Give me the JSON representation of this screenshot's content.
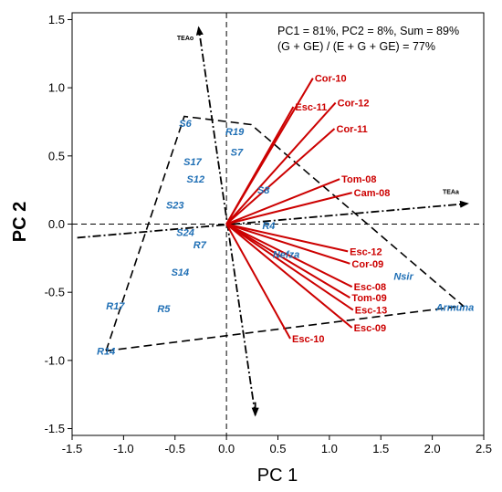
{
  "chart_data": {
    "type": "scatter",
    "xlabel": "PC 1",
    "ylabel": "PC 2",
    "xlim": [
      -1.5,
      2.5
    ],
    "ylim": [
      -1.55,
      1.55
    ],
    "x_ticks": [
      -1.5,
      -1.0,
      -0.5,
      0.0,
      0.5,
      1.0,
      1.5,
      2.0,
      2.5
    ],
    "y_ticks": [
      -1.5,
      -1.0,
      -0.5,
      0.0,
      0.5,
      1.0,
      1.5
    ],
    "x_tick_labels": [
      "-1.5",
      "-1.0",
      "-0.5",
      "0.0",
      "0.5",
      "1.0",
      "1.5",
      "2.0",
      "2.5"
    ],
    "y_tick_labels": [
      "-1.5",
      "-1.0",
      "-0.5",
      "0.0",
      "0.5",
      "1.0",
      "1.5"
    ],
    "annotations": [
      "PC1 =  81%, PC2 = 8%, Sum = 89%",
      "(G + GE) / (E + G + GE) = 77%"
    ],
    "genotypes": [
      {
        "name": "S6",
        "x": -0.4,
        "y": 0.74
      },
      {
        "name": "R19",
        "x": 0.08,
        "y": 0.68
      },
      {
        "name": "S7",
        "x": 0.1,
        "y": 0.53
      },
      {
        "name": "S17",
        "x": -0.33,
        "y": 0.46
      },
      {
        "name": "S12",
        "x": -0.3,
        "y": 0.33
      },
      {
        "name": "S8",
        "x": 0.36,
        "y": 0.25
      },
      {
        "name": "S23",
        "x": -0.5,
        "y": 0.14
      },
      {
        "name": "R4",
        "x": 0.41,
        "y": -0.01
      },
      {
        "name": "S24",
        "x": -0.4,
        "y": -0.06
      },
      {
        "name": "R7",
        "x": -0.26,
        "y": -0.15
      },
      {
        "name": "Nefza",
        "x": 0.58,
        "y": -0.22
      },
      {
        "name": "S14",
        "x": -0.45,
        "y": -0.35
      },
      {
        "name": "Nsir",
        "x": 1.72,
        "y": -0.38
      },
      {
        "name": "R17",
        "x": -1.08,
        "y": -0.6
      },
      {
        "name": "R5",
        "x": -0.61,
        "y": -0.62
      },
      {
        "name": "Armuna",
        "x": 2.22,
        "y": -0.61
      },
      {
        "name": "R14",
        "x": -1.17,
        "y": -0.93
      }
    ],
    "environments": [
      {
        "name": "Cor-10",
        "x": 0.84,
        "y": 1.07
      },
      {
        "name": "Esc-11",
        "x": 0.65,
        "y": 0.86
      },
      {
        "name": "Cor-12",
        "x": 1.06,
        "y": 0.89
      },
      {
        "name": "Cor-11",
        "x": 1.05,
        "y": 0.7
      },
      {
        "name": "Tom-08",
        "x": 1.1,
        "y": 0.33
      },
      {
        "name": "Cam-08",
        "x": 1.22,
        "y": 0.23
      },
      {
        "name": "Esc-12",
        "x": 1.18,
        "y": -0.2
      },
      {
        "name": "Cor-09",
        "x": 1.2,
        "y": -0.29
      },
      {
        "name": "Esc-08",
        "x": 1.22,
        "y": -0.46
      },
      {
        "name": "Tom-09",
        "x": 1.2,
        "y": -0.54
      },
      {
        "name": "Esc-13",
        "x": 1.23,
        "y": -0.63
      },
      {
        "name": "Esc-09",
        "x": 1.22,
        "y": -0.76
      },
      {
        "name": "Esc-10",
        "x": 0.62,
        "y": -0.84
      }
    ],
    "hull": [
      [
        -1.17,
        -0.93
      ],
      [
        -0.41,
        0.79
      ],
      [
        0.24,
        0.73
      ],
      [
        2.3,
        -0.6
      ],
      [
        -1.17,
        -0.93
      ]
    ],
    "tea_axes": [
      {
        "name": "TEAo",
        "from": [
          0.28,
          -1.4
        ],
        "to": [
          -0.27,
          1.44
        ],
        "label_at": [
          -0.4,
          1.37
        ]
      },
      {
        "name": "TEAa",
        "from": [
          -1.45,
          -0.1
        ],
        "to": [
          2.34,
          0.15
        ],
        "label_at": [
          2.18,
          0.24
        ]
      }
    ],
    "colors": {
      "genotype": "#1f6fb5",
      "environment": "#cc0000",
      "lines": "#000000"
    }
  }
}
